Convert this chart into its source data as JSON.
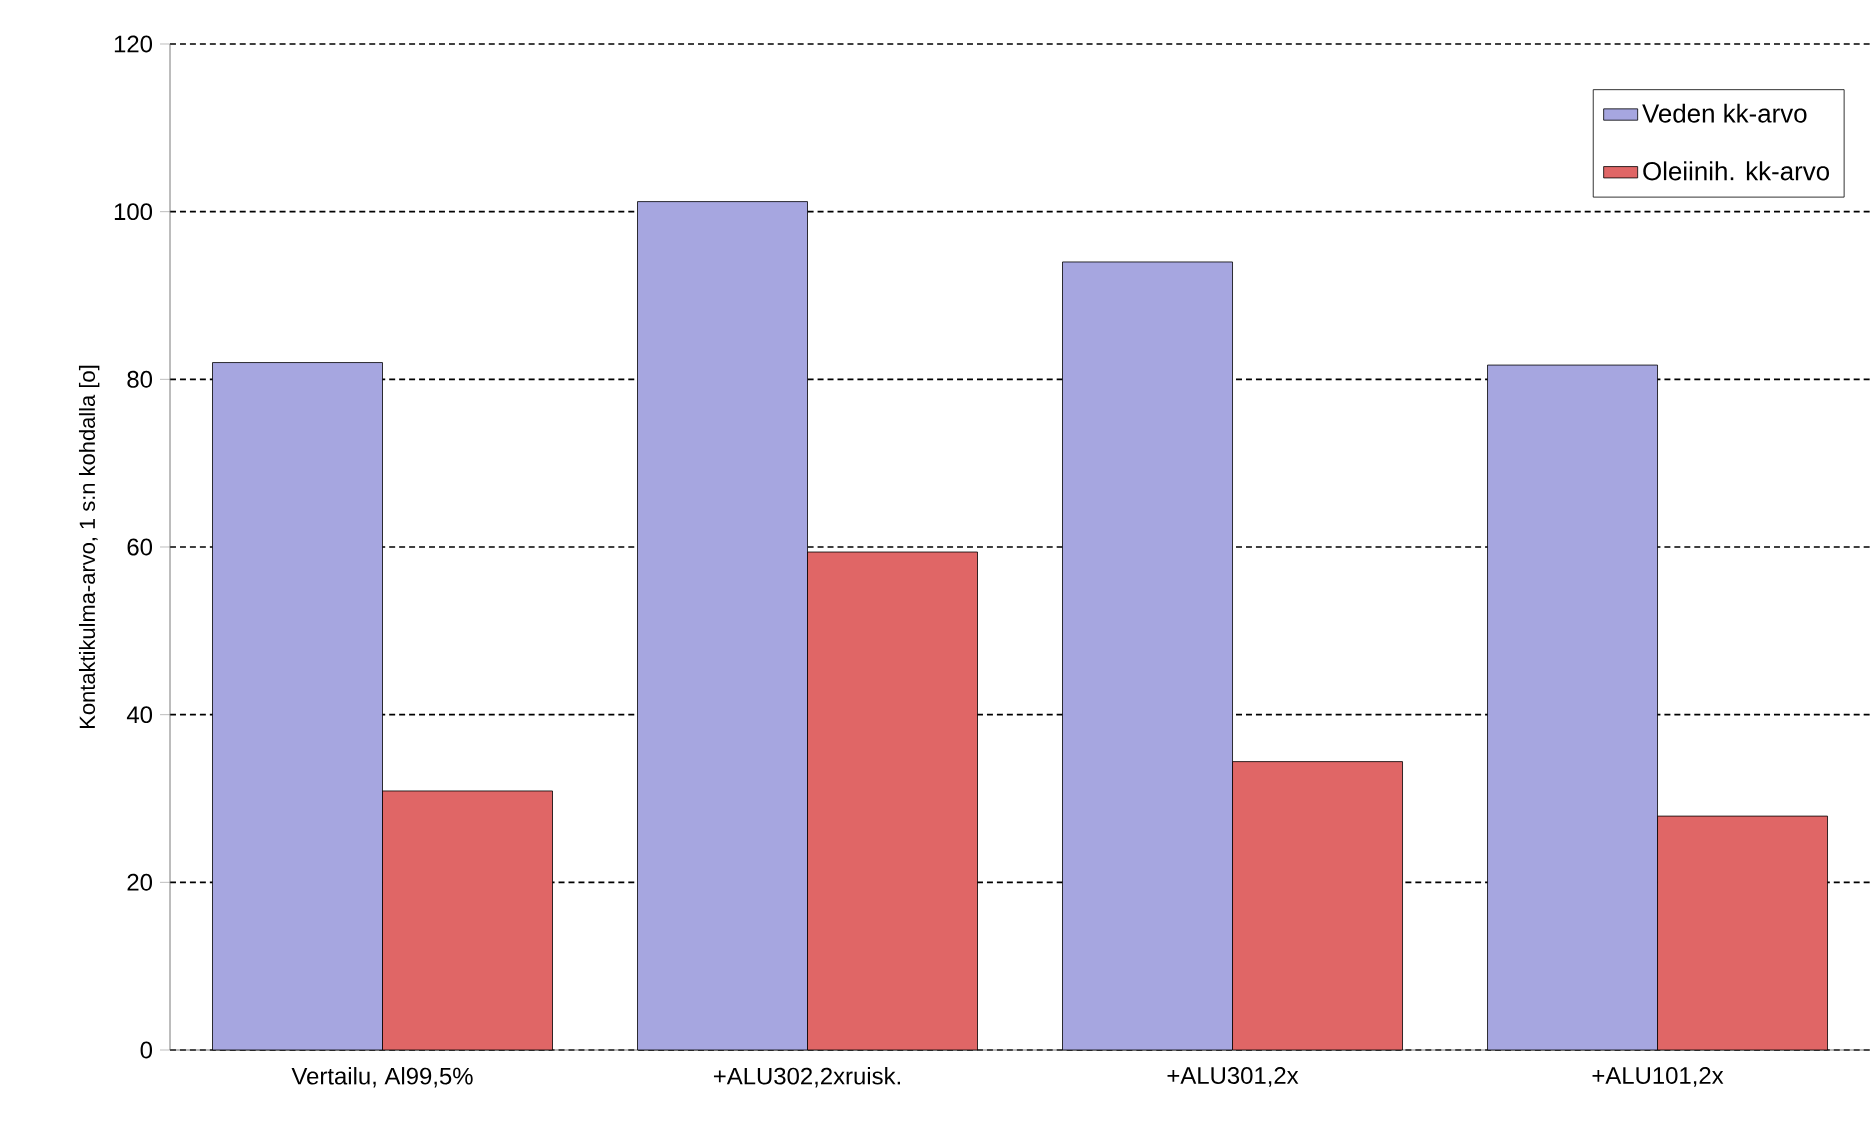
{
  "chart_data": {
    "type": "bar",
    "ylabel": "Kontaktikulma-arvo, 1 s:n kohdalla [o]",
    "categories": [
      "Vertailu, Al99,5%",
      "+ALU302,2xruisk.",
      "+ALU301,2x",
      "+ALU101,2x"
    ],
    "series": [
      {
        "name": "Veden kk-arvo",
        "color": "#a6a6e0",
        "values": [
          82,
          101.2,
          94,
          81.7
        ]
      },
      {
        "name": "Oleiinih. kk-arvo",
        "color": "#e06666",
        "values": [
          30.9,
          59.4,
          34.4,
          27.9
        ]
      }
    ],
    "ylim": [
      0,
      120
    ],
    "yticks": [
      0,
      20,
      40,
      60,
      80,
      100,
      120
    ],
    "grid": "y",
    "legend": "top right"
  }
}
